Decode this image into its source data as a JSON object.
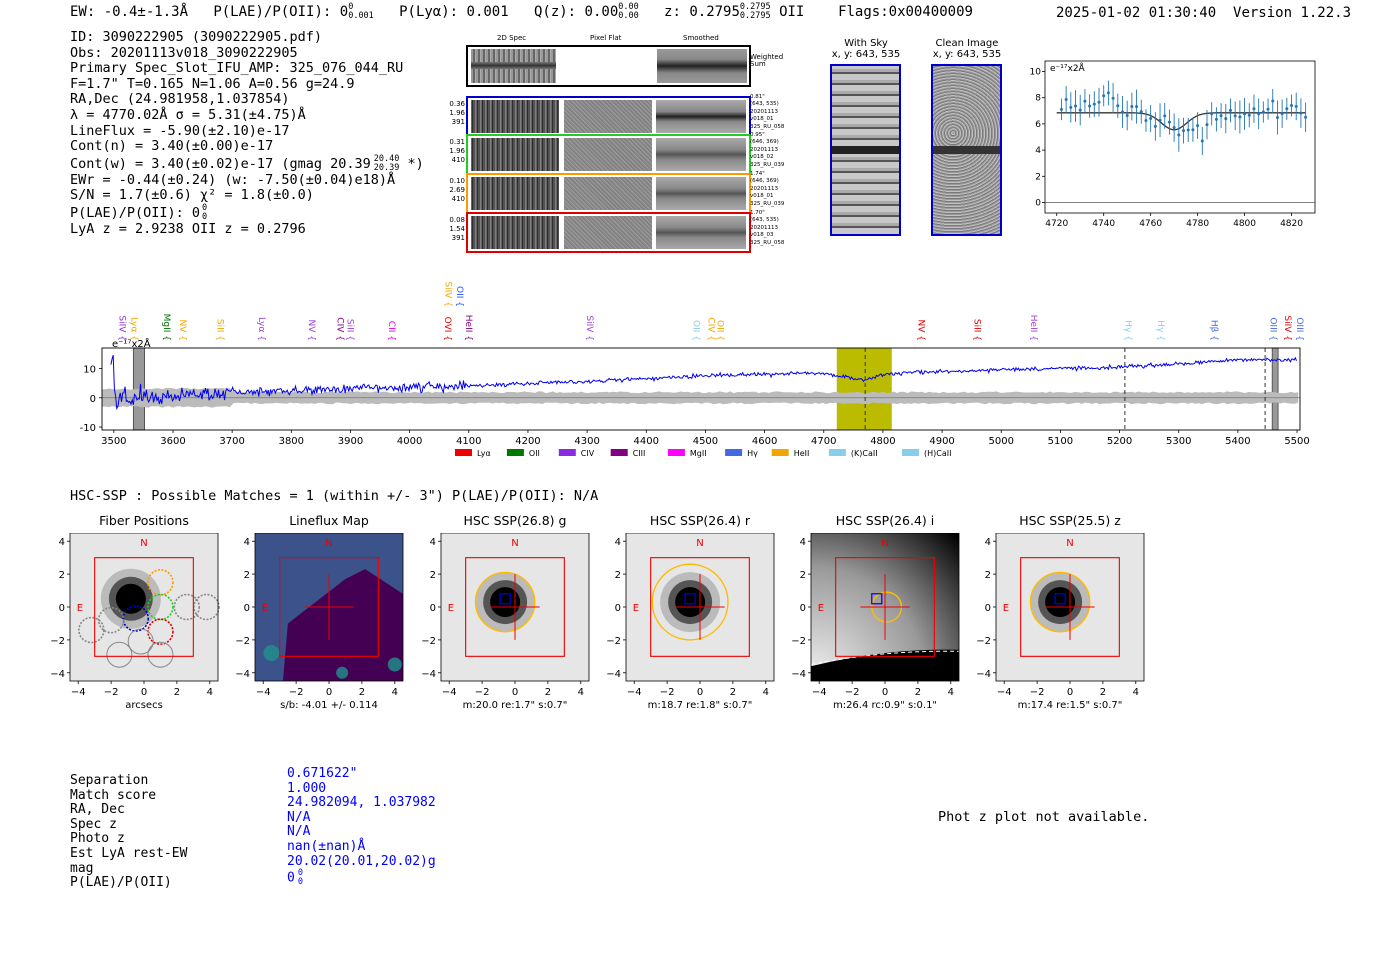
{
  "header": {
    "ew": "EW: -0.4±-1.3Å",
    "plae_label": "P(LAE)/P(OII):",
    "plae_val": "0",
    "plae_sup": "0",
    "plae_sub": "0.001",
    "plya": "P(Lyα): 0.001",
    "qz_label": "Q(z): 0.00",
    "qz_sup": "0.00",
    "qz_sub": "0.00",
    "z_label": "z: 0.2795",
    "z_sup": "0.2795",
    "z_sub": "0.2795",
    "z_line": "OII",
    "flags": "Flags:0x00400009",
    "timestamp": "2025-01-02 01:30:40",
    "version": "Version 1.22.3"
  },
  "info": {
    "id": "ID: 3090222905 (3090222905.pdf)",
    "obs": "Obs: 20201113v018_3090222905",
    "primary": "Primary Spec_Slot_IFU_AMP: 325_076_044_RU",
    "fwhm": "F=1.7\"  T=0.165  N=1.06  A=0.56  g=24.9",
    "radec": "RA,Dec (24.981958,1.037854)",
    "lambda": "λ = 4770.02Å  σ = 5.31(±4.75)Å",
    "lineflux": "LineFlux = -5.90(±2.10)e-17",
    "contn": "Cont(n) = 3.40(±0.00)e-17",
    "contw_pre": "Cont(w) = 3.40(±0.02)e-17 (gmag 20.39",
    "contw_sup": "20.40",
    "contw_sub": "20.39",
    "contw_post": "*)",
    "ewr": "EWr = -0.44(±0.24) (w: -7.50(±0.04)e18)Å",
    "sn": "S/N = 1.7(±0.6)  χ² = 1.8(±0.0)",
    "plae_pre": "P(LAE)/P(OII): 0",
    "plae_sup": "0",
    "plae_sub": "0",
    "lyaz": "LyA z = 2.9238  OII z = 0.2796"
  },
  "cutouts": {
    "col_headers": [
      "2D Spec",
      "Pixel Flat",
      "Smoothed"
    ],
    "weighted_label": "Weighted Sum",
    "fibers": [
      {
        "stats": [
          "0.36",
          "1.96",
          "391"
        ],
        "meta": [
          "0.81\"",
          "(643, 535)",
          "20201113",
          "v018_01",
          "325_RU_058"
        ],
        "color": "#0000cc"
      },
      {
        "stats": [
          "0.31",
          "1.96",
          "410"
        ],
        "meta": [
          "0.95\"",
          "(646, 369)",
          "20201113",
          "v018_02",
          "325_RU_039"
        ],
        "color": "#22cc22"
      },
      {
        "stats": [
          "0.10",
          "2.69",
          "410"
        ],
        "meta": [
          "1.74\"",
          "(646, 369)",
          "20201113",
          "v018_01",
          "325_RU_039"
        ],
        "color": "#ff9900"
      },
      {
        "stats": [
          "0.08",
          "1.54",
          "391"
        ],
        "meta": [
          "1.70\"",
          "(643, 535)",
          "20201113",
          "v018_03",
          "325_RU_058"
        ],
        "color": "#dd0000"
      }
    ],
    "with_sky_title": "With Sky",
    "clean_title": "Clean Image",
    "xy_label": "x, y: 643, 535"
  },
  "zoom_plot": {
    "scale_label": "e⁻¹⁷x2Å",
    "xticks": [
      4720,
      4740,
      4760,
      4780,
      4800,
      4820
    ],
    "yticks": [
      0,
      2,
      4,
      6,
      8,
      10
    ]
  },
  "chart_data": [
    {
      "type": "line",
      "title": "",
      "scale_label": "e⁻¹⁷x2Å",
      "xlabel": "",
      "ylabel": "",
      "xlim": [
        3480,
        5505
      ],
      "ylim": [
        -11,
        17
      ],
      "xticks": [
        3500,
        3600,
        3700,
        3800,
        3900,
        4000,
        4100,
        4200,
        4300,
        4400,
        4500,
        4600,
        4700,
        4800,
        4900,
        5000,
        5100,
        5200,
        5300,
        5400,
        5500
      ],
      "yticks": [
        -10,
        0,
        10
      ],
      "highlight_band": [
        4722,
        4815
      ],
      "dashed_lines": [
        4770,
        5209,
        5446
      ],
      "hatched_bands": [
        [
          3533,
          3552
        ],
        [
          5458,
          5468
        ]
      ],
      "series_anchor_points": [
        {
          "x": 3500,
          "y": 0
        },
        {
          "x": 3600,
          "y": 1
        },
        {
          "x": 3700,
          "y": 1.5
        },
        {
          "x": 3800,
          "y": 2.5
        },
        {
          "x": 3900,
          "y": 3
        },
        {
          "x": 4000,
          "y": 3.5
        },
        {
          "x": 4100,
          "y": 4
        },
        {
          "x": 4200,
          "y": 5
        },
        {
          "x": 4300,
          "y": 5.5
        },
        {
          "x": 4400,
          "y": 6.5
        },
        {
          "x": 4500,
          "y": 7.5
        },
        {
          "x": 4600,
          "y": 8
        },
        {
          "x": 4700,
          "y": 8.5
        },
        {
          "x": 4770,
          "y": 6
        },
        {
          "x": 4800,
          "y": 8
        },
        {
          "x": 4900,
          "y": 9
        },
        {
          "x": 5000,
          "y": 9.5
        },
        {
          "x": 5100,
          "y": 10
        },
        {
          "x": 5200,
          "y": 10.5
        },
        {
          "x": 5300,
          "y": 11.5
        },
        {
          "x": 5400,
          "y": 13
        },
        {
          "x": 5500,
          "y": 13
        }
      ],
      "line_markers": [
        {
          "x": 3510,
          "label": "SiIV",
          "color": "#8e2bd8"
        },
        {
          "x": 3530,
          "label": "Lyα",
          "color": "#f0a500"
        },
        {
          "x": 3585,
          "label": "MgII",
          "color": "#007000"
        },
        {
          "x": 3612,
          "label": "NV",
          "color": "#f0a500"
        },
        {
          "x": 3675,
          "label": "SiII",
          "color": "#f0a500"
        },
        {
          "x": 3745,
          "label": "Lyα",
          "color": "#9a40d8"
        },
        {
          "x": 3830,
          "label": "NV",
          "color": "#9a40d8"
        },
        {
          "x": 3878,
          "label": "CIV",
          "color": "#800080"
        },
        {
          "x": 3895,
          "label": "SiII",
          "color": "#9a40d8"
        },
        {
          "x": 3965,
          "label": "CII",
          "color": "#dd00dd"
        },
        {
          "x": 4061,
          "label": "SiIV",
          "color": "#f0a500",
          "high": true
        },
        {
          "x": 4080,
          "label": "OII",
          "color": "#2255ff",
          "high": true
        },
        {
          "x": 4060,
          "label": "OVI",
          "color": "#dd0000"
        },
        {
          "x": 4095,
          "label": "HeII",
          "color": "#800080"
        },
        {
          "x": 4300,
          "label": "SiIV",
          "color": "#9a40d8"
        },
        {
          "x": 4480,
          "label": "OII",
          "color": "#87ceeb"
        },
        {
          "x": 4505,
          "label": "CIV",
          "color": "#f0a500"
        },
        {
          "x": 4520,
          "label": "OII",
          "color": "#f0a500"
        },
        {
          "x": 4860,
          "label": "NV",
          "color": "#dd0000"
        },
        {
          "x": 4955,
          "label": "SiII",
          "color": "#dd0000"
        },
        {
          "x": 5050,
          "label": "HeII",
          "color": "#9a40d8"
        },
        {
          "x": 5210,
          "label": "Hγ",
          "color": "#87ceeb"
        },
        {
          "x": 5265,
          "label": "Hγ",
          "color": "#87ceeb"
        },
        {
          "x": 5355,
          "label": "Hβ",
          "color": "#4169e1"
        },
        {
          "x": 5455,
          "label": "OIII",
          "color": "#4169e1"
        },
        {
          "x": 5480,
          "label": "SiIV",
          "color": "#dd0000"
        },
        {
          "x": 5500,
          "label": "OIII",
          "color": "#4169e1"
        }
      ],
      "legend": [
        {
          "label": "Lyα",
          "color": "#ee0000"
        },
        {
          "label": "OII",
          "color": "#007700"
        },
        {
          "label": "CIV",
          "color": "#8a2be2"
        },
        {
          "label": "CIII",
          "color": "#800080"
        },
        {
          "label": "MgII",
          "color": "#ff00ff"
        },
        {
          "label": "Hγ",
          "color": "#4169e1"
        },
        {
          "label": "HeII",
          "color": "#f0a500"
        },
        {
          "label": "(K)CaII",
          "color": "#87ceeb"
        },
        {
          "label": "(H)CaII",
          "color": "#87ceeb"
        }
      ]
    }
  ],
  "hsc": {
    "matches_line": "HSC-SSP : Possible Matches = 1 (within +/- 3\")  P(LAE)/P(OII): N/A",
    "panels": [
      {
        "title": "Fiber Positions",
        "xlabel": "arcsecs"
      },
      {
        "title": "Lineflux Map",
        "xlabel": "s/b: -4.01 +/- 0.114"
      },
      {
        "title": "HSC SSP(26.8) g",
        "xlabel": "m:20.0  re:1.7\"  s:0.7\""
      },
      {
        "title": "HSC SSP(26.4) r",
        "xlabel": "m:18.7  re:1.8\"  s:0.7\""
      },
      {
        "title": "HSC SSP(26.4) i",
        "xlabel": "m:26.4 rc:0.9\"  s:0.1\""
      },
      {
        "title": "HSC SSP(25.5) z",
        "xlabel": "m:17.4  re:1.5\"  s:0.7\""
      }
    ],
    "ticks": [
      "−4",
      "−2",
      "0",
      "2",
      "4"
    ],
    "north": "N",
    "east": "E"
  },
  "match_table": {
    "labels": [
      "Separation",
      "Match score",
      "RA, Dec",
      "Spec z",
      "Photo z",
      "Est LyA rest-EW",
      "mag",
      "P(LAE)/P(OII)"
    ],
    "values": [
      "0.671622\"",
      "1.000",
      "24.982094, 1.037982",
      "N/A",
      "N/A",
      "nan(±nan)Å",
      "20.02(20.01,20.02)g",
      "0"
    ],
    "plae_sup": "0",
    "plae_sub": "0"
  },
  "photz_note": "Phot z plot not available."
}
